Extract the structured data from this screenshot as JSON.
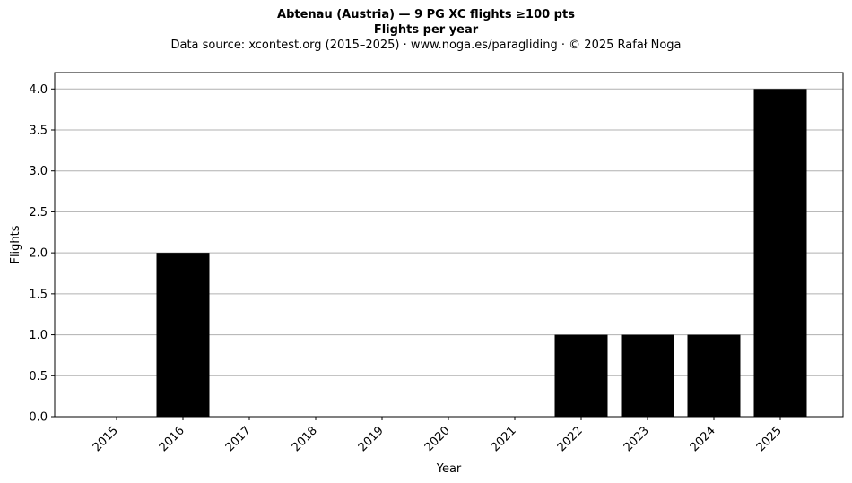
{
  "chart_data": {
    "type": "bar",
    "title": "Abtenau (Austria)  —  9 PG XC flights ≥100 pts",
    "subtitle": "Flights per year",
    "source_line": "Data source: xcontest.org (2015–2025)  ·  www.noga.es/paragliding  ·  © 2025 Rafał Noga",
    "xlabel": "Year",
    "ylabel": "Flights",
    "categories": [
      "2015",
      "2016",
      "2017",
      "2018",
      "2019",
      "2020",
      "2021",
      "2022",
      "2023",
      "2024",
      "2025"
    ],
    "values": [
      0,
      2,
      0,
      0,
      0,
      0,
      0,
      1,
      1,
      1,
      4
    ],
    "ylim": [
      0,
      4.2
    ],
    "yticks": [
      "0.0",
      "0.5",
      "1.0",
      "1.5",
      "2.0",
      "2.5",
      "3.0",
      "3.5",
      "4.0"
    ],
    "grid": "horizontal",
    "bar_color": "#000000",
    "grid_color": "#b0b0b0"
  }
}
